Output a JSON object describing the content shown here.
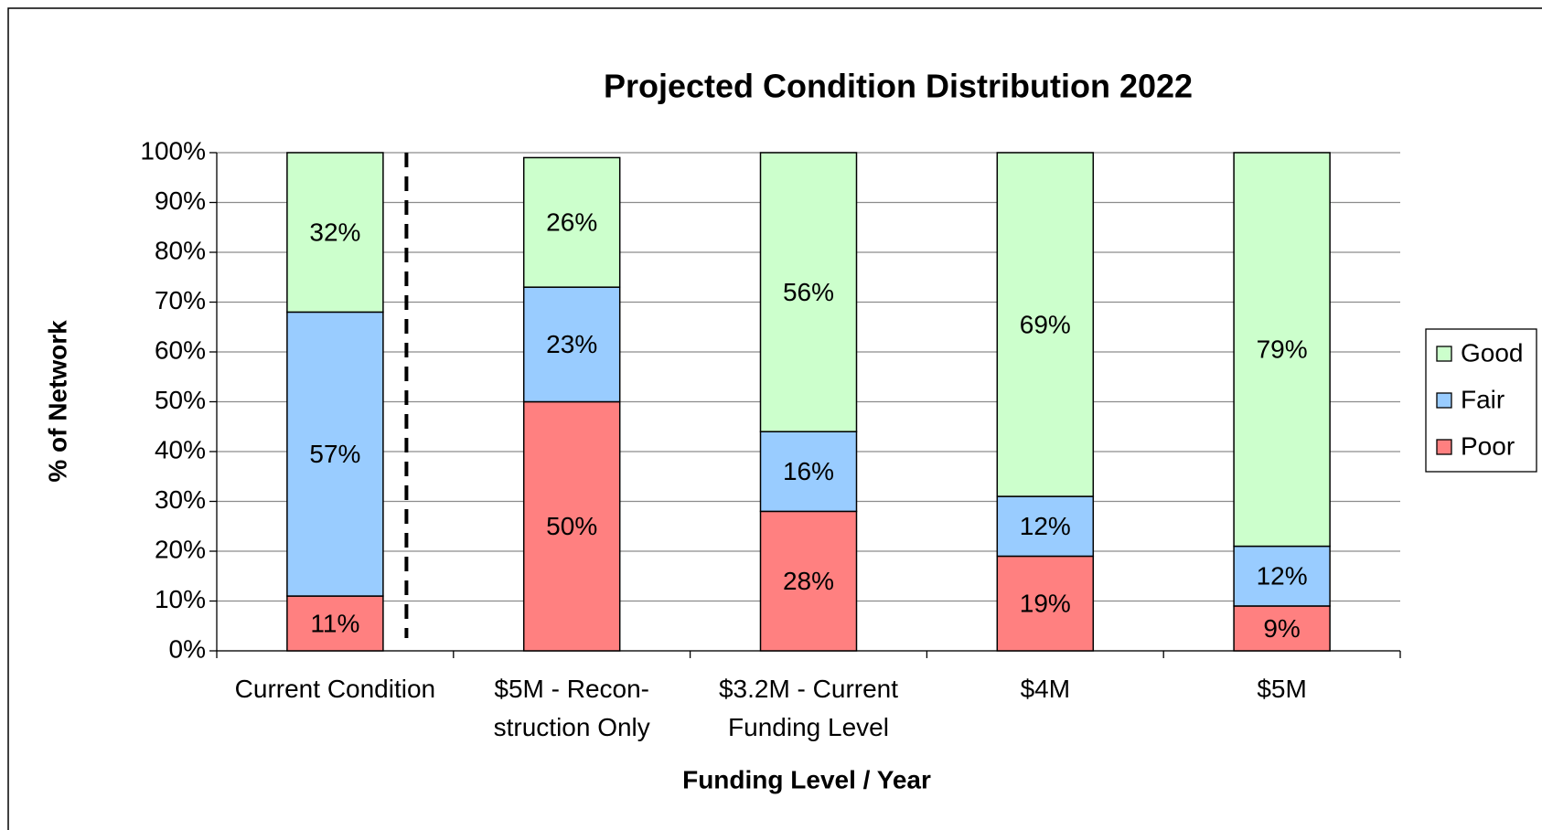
{
  "chart_data": {
    "type": "stacked-bar",
    "title": "Projected Condition Distribution 2022",
    "x_label": "Funding Level / Year",
    "y_label": "% of Network",
    "categories": [
      "Current Condition",
      "$5M - Recon-\nstruction Only",
      "$3.2M - Current\nFunding Level",
      "$4M",
      "$5M"
    ],
    "series": [
      {
        "name": "Poor",
        "color": "#ff8080",
        "values": [
          11,
          50,
          28,
          19,
          9
        ],
        "value_labels": [
          "11%",
          "50%",
          "28%",
          "19%",
          "9%"
        ]
      },
      {
        "name": "Fair",
        "color": "#99ccff",
        "values": [
          57,
          23,
          16,
          12,
          12
        ],
        "value_labels": [
          "57%",
          "23%",
          "16%",
          "12%",
          "12%"
        ]
      },
      {
        "name": "Good",
        "color": "#ccffcc",
        "values": [
          32,
          26,
          56,
          69,
          79
        ],
        "value_labels": [
          "32%",
          "26%",
          "56%",
          "69%",
          "79%"
        ]
      }
    ],
    "ylim": [
      0,
      100
    ],
    "yticks": [
      {
        "value": 0,
        "label": "0%"
      },
      {
        "value": 10,
        "label": "10%"
      },
      {
        "value": 20,
        "label": "20%"
      },
      {
        "value": 30,
        "label": "30%"
      },
      {
        "value": 40,
        "label": "40%"
      },
      {
        "value": 50,
        "label": "50%"
      },
      {
        "value": 60,
        "label": "60%"
      },
      {
        "value": 70,
        "label": "70%"
      },
      {
        "value": 80,
        "label": "80%"
      },
      {
        "value": 90,
        "label": "90%"
      },
      {
        "value": 100,
        "label": "100%"
      }
    ],
    "grid": true,
    "legend": "right"
  }
}
